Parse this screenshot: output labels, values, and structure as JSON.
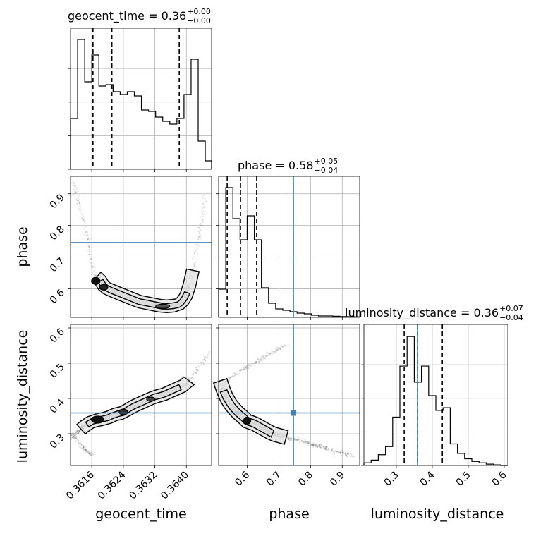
{
  "figure": {
    "parameters": [
      "geocent_time",
      "phase",
      "luminosity_distance"
    ]
  },
  "chart_data": {
    "type": "corner",
    "titles": [
      {
        "param": "geocent_time",
        "label": "geocent_time = 0.36",
        "sup": "+0.00",
        "sub": "−0.00"
      },
      {
        "param": "phase",
        "label": "phase = 0.58",
        "sup": "+0.05",
        "sub": "−0.04"
      },
      {
        "param": "luminosity_distance",
        "label": "luminosity_distance = 0.36",
        "sup": "+0.07",
        "sub": "−0.04"
      }
    ],
    "axis_labels": {
      "geocent_time": "geocent_time",
      "phase": "phase",
      "luminosity_distance": "luminosity_distance"
    },
    "ranges": {
      "geocent_time": [
        0.36106,
        0.36464
      ],
      "phase": [
        0.51,
        0.955
      ],
      "luminosity_distance": [
        0.21,
        0.61
      ]
    },
    "ticks": {
      "geocent_time": [
        0.3616,
        0.3624,
        0.3632,
        0.364
      ],
      "phase": [
        0.6,
        0.7,
        0.8,
        0.9
      ],
      "luminosity_distance": [
        0.3,
        0.4,
        0.5,
        0.6
      ]
    },
    "tick_labels": {
      "geocent_time": [
        "0.3616",
        "0.3624",
        "0.3632",
        "0.3640"
      ],
      "phase": [
        "0.6",
        "0.7",
        "0.8",
        "0.9"
      ],
      "luminosity_distance": [
        "0.3",
        "0.4",
        "0.5",
        "0.6"
      ]
    },
    "truths": {
      "geocent_time": null,
      "phase": 0.746,
      "luminosity_distance": 0.359
    },
    "quantiles": {
      "geocent_time": [
        0.36163,
        0.36211,
        0.36382
      ],
      "phase": [
        0.537,
        0.579,
        0.63
      ],
      "luminosity_distance": [
        0.322,
        0.359,
        0.428
      ]
    },
    "histograms": {
      "geocent_time": {
        "edges": [
          0.36106,
          0.36124,
          0.36142,
          0.3616,
          0.36178,
          0.36196,
          0.36214,
          0.36232,
          0.3625,
          0.36268,
          0.36286,
          0.36304,
          0.36322,
          0.3634,
          0.36358,
          0.36376,
          0.36394,
          0.36412,
          0.3643,
          0.36448,
          0.36464
        ],
        "counts": [
          0.36,
          0.92,
          0.62,
          0.81,
          0.59,
          0.6,
          0.55,
          0.53,
          0.55,
          0.52,
          0.42,
          0.41,
          0.37,
          0.34,
          0.32,
          0.36,
          0.53,
          0.78,
          0.2,
          0.06
        ],
        "ymax": 1.0
      },
      "phase": {
        "edges": [
          0.51,
          0.5325,
          0.555,
          0.5775,
          0.6,
          0.6225,
          0.645,
          0.6675,
          0.69,
          0.7125,
          0.735,
          0.7575,
          0.78,
          0.8025,
          0.825,
          0.8475,
          0.87,
          0.8925,
          0.915,
          0.9375,
          0.955
        ],
        "counts": [
          0.2,
          0.92,
          0.7,
          0.55,
          0.72,
          0.55,
          0.21,
          0.1,
          0.06,
          0.05,
          0.04,
          0.03,
          0.025,
          0.015,
          0.01,
          0.01,
          0.008,
          0.006,
          0.005,
          0.004
        ],
        "ymax": 1.0
      },
      "luminosity_distance": {
        "edges": [
          0.21,
          0.23,
          0.25,
          0.27,
          0.29,
          0.31,
          0.33,
          0.35,
          0.37,
          0.39,
          0.41,
          0.43,
          0.45,
          0.47,
          0.49,
          0.51,
          0.53,
          0.55,
          0.57,
          0.59,
          0.61
        ],
        "counts": [
          0.02,
          0.04,
          0.08,
          0.14,
          0.36,
          0.74,
          0.96,
          0.62,
          0.74,
          0.52,
          0.41,
          0.43,
          0.16,
          0.09,
          0.05,
          0.03,
          0.02,
          0.01,
          0.005,
          0.0
        ],
        "ymax": 1.05
      }
    },
    "scatter": {
      "phase_vs_geocent_time": {
        "curve_x": [
          0.36115,
          0.36125,
          0.36138,
          0.3615,
          0.3616,
          0.3617,
          0.3618,
          0.3619,
          0.362,
          0.3622,
          0.3624,
          0.3626,
          0.3628,
          0.363,
          0.3632,
          0.3634,
          0.3636,
          0.3638,
          0.3639,
          0.364,
          0.3641,
          0.3642,
          0.3643,
          0.3644,
          0.3645
        ],
        "curve_y": [
          0.94,
          0.88,
          0.82,
          0.75,
          0.68,
          0.64,
          0.63,
          0.61,
          0.6,
          0.59,
          0.58,
          0.57,
          0.56,
          0.555,
          0.55,
          0.545,
          0.545,
          0.55,
          0.56,
          0.58,
          0.62,
          0.68,
          0.75,
          0.82,
          0.9
        ]
      },
      "luminosity_distance_vs_geocent_time": {
        "curve_x": [
          0.36108,
          0.3612,
          0.3613,
          0.3614,
          0.3616,
          0.3618,
          0.362,
          0.3622,
          0.3624,
          0.3626,
          0.3628,
          0.363,
          0.3632,
          0.3634,
          0.3636,
          0.3638,
          0.364,
          0.3642,
          0.3644,
          0.3646
        ],
        "curve_y": [
          0.29,
          0.3,
          0.31,
          0.32,
          0.335,
          0.34,
          0.345,
          0.355,
          0.36,
          0.375,
          0.385,
          0.395,
          0.405,
          0.41,
          0.42,
          0.43,
          0.44,
          0.47,
          0.5,
          0.53
        ],
        "tail_x": [
          0.36108,
          0.3612,
          0.3613,
          0.3614,
          0.3615,
          0.3616
        ],
        "tail_y": [
          0.3,
          0.285,
          0.27,
          0.258,
          0.25,
          0.24
        ]
      },
      "luminosity_distance_vs_phase": {
        "curve_x": [
          0.515,
          0.53,
          0.55,
          0.57,
          0.59,
          0.6,
          0.62,
          0.64,
          0.66,
          0.68,
          0.7,
          0.72,
          0.74,
          0.77,
          0.8,
          0.83,
          0.86,
          0.9,
          0.94
        ],
        "curve_y": [
          0.45,
          0.41,
          0.38,
          0.36,
          0.345,
          0.335,
          0.33,
          0.32,
          0.31,
          0.3,
          0.295,
          0.29,
          0.285,
          0.28,
          0.27,
          0.265,
          0.255,
          0.245,
          0.235
        ],
        "tail_x": [
          0.52,
          0.55,
          0.58,
          0.61,
          0.64,
          0.67,
          0.7,
          0.73
        ],
        "tail_y": [
          0.44,
          0.46,
          0.48,
          0.495,
          0.51,
          0.525,
          0.54,
          0.555
        ]
      }
    }
  }
}
